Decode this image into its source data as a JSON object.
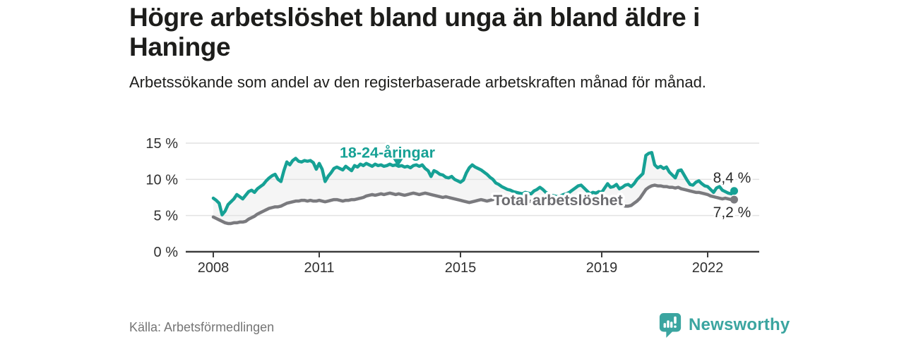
{
  "title": "Högre arbetslöshet bland unga än bland äldre i Haninge",
  "subtitle": "Arbetssökande som andel av den registerbaserade arbetskraften månad för månad.",
  "source": "Källa: Arbetsförmedlingen",
  "branding": {
    "logo_text": "Newsworthy",
    "logo_icon": "bar-chart-speech-bubble-icon",
    "brand_color": "#3ba5a0"
  },
  "colors": {
    "youth_line": "#16a195",
    "total_line": "#7a7a7e",
    "total_label": "#6c6c70",
    "between_fill": "#f5f5f5",
    "gridline": "#e2e2e2",
    "axis": "#3d3d3d",
    "tick_text": "#303030",
    "value_text": "#2b2b2b"
  },
  "chart_data": {
    "type": "line",
    "title": "Högre arbetslöshet bland unga än bland äldre i Haninge",
    "subtitle": "Arbetssökande som andel av den registerbaserade arbetskraften månad för månad.",
    "x_start_year": 2008,
    "x_frequency": "monthly",
    "x_tick_years": [
      2008,
      2011,
      2015,
      2019,
      2022
    ],
    "x_tick_labels": [
      "2008",
      "2011",
      "2015",
      "2019",
      "2022"
    ],
    "y_ticks": [
      0,
      5,
      10,
      15
    ],
    "y_tick_labels": [
      "0 %",
      "5 %",
      "10 %",
      "15 %"
    ],
    "ylim": [
      0,
      15
    ],
    "grid": true,
    "unit": "%",
    "legend_position": "inline-labels",
    "annotations": {
      "youth_label": {
        "text": "18-24-åringar",
        "x_year": 2012.93,
        "baseline_value": 13.0,
        "arrow": "down",
        "arrow_x_year": 2013.23,
        "arrow_tip_value": 11.75
      },
      "total_label": {
        "text": "Total arbetslöshet",
        "x_year": 2017.76,
        "baseline_value": 6.45
      }
    },
    "series": [
      {
        "name": "18-24-åringar",
        "end_label": "8,4 %",
        "end_value": 8.4,
        "values": [
          7.4,
          7.1,
          6.7,
          5.1,
          5.6,
          6.5,
          6.9,
          7.3,
          7.9,
          7.6,
          7.3,
          7.8,
          8.3,
          8.5,
          8.2,
          8.7,
          9.0,
          9.3,
          9.8,
          10.2,
          10.5,
          10.7,
          10.0,
          9.7,
          11.2,
          12.4,
          12.0,
          12.6,
          12.9,
          12.5,
          12.4,
          12.6,
          12.5,
          12.6,
          12.3,
          11.4,
          12.2,
          11.4,
          9.7,
          10.4,
          10.9,
          11.5,
          11.7,
          11.5,
          11.3,
          11.8,
          11.5,
          11.2,
          11.9,
          11.7,
          12.1,
          11.9,
          12.2,
          12.0,
          11.8,
          12.1,
          11.9,
          12.0,
          11.8,
          11.9,
          12.1,
          11.9,
          12.0,
          11.8,
          11.9,
          11.7,
          11.8,
          11.6,
          11.9,
          12.0,
          11.8,
          12.0,
          11.5,
          11.2,
          10.4,
          11.2,
          11.0,
          10.7,
          10.6,
          10.3,
          10.2,
          10.4,
          10.0,
          9.8,
          9.6,
          9.9,
          10.9,
          11.6,
          12.0,
          11.7,
          11.5,
          11.3,
          11.0,
          10.7,
          10.3,
          10.0,
          9.5,
          9.3,
          9.0,
          8.8,
          8.6,
          8.5,
          8.3,
          8.2,
          8.1,
          8.0,
          8.2,
          8.1,
          8.0,
          8.4,
          8.6,
          8.9,
          8.6,
          8.2,
          8.0,
          7.8,
          7.7,
          7.6,
          7.7,
          7.9,
          8.0,
          8.2,
          8.5,
          8.8,
          9.1,
          9.2,
          8.8,
          8.4,
          8.0,
          8.2,
          8.1,
          8.3,
          8.2,
          8.8,
          9.4,
          8.9,
          9.0,
          9.3,
          8.7,
          8.9,
          9.2,
          9.3,
          9.0,
          9.4,
          10.0,
          10.4,
          10.8,
          13.3,
          13.6,
          13.7,
          12.0,
          11.6,
          11.8,
          11.5,
          11.7,
          11.0,
          10.6,
          10.2,
          11.2,
          11.3,
          10.6,
          9.9,
          9.3,
          9.2,
          9.6,
          9.8,
          9.4,
          9.1,
          9.0,
          8.6,
          8.2,
          8.8,
          9.0,
          8.5,
          8.3,
          8.1,
          8.0,
          8.4
        ]
      },
      {
        "name": "Total arbetslöshet",
        "end_label": "7,2 %",
        "end_value": 7.2,
        "values": [
          4.8,
          4.6,
          4.4,
          4.2,
          4.0,
          3.9,
          3.9,
          4.0,
          4.0,
          4.1,
          4.1,
          4.2,
          4.5,
          4.7,
          4.9,
          5.2,
          5.4,
          5.6,
          5.8,
          6.0,
          6.1,
          6.2,
          6.2,
          6.3,
          6.5,
          6.7,
          6.8,
          6.9,
          7.0,
          7.0,
          7.1,
          7.1,
          7.0,
          7.1,
          7.0,
          7.0,
          7.1,
          7.0,
          6.9,
          7.0,
          7.1,
          7.2,
          7.2,
          7.1,
          7.0,
          7.1,
          7.1,
          7.2,
          7.2,
          7.3,
          7.4,
          7.5,
          7.7,
          7.8,
          7.9,
          7.8,
          7.9,
          8.0,
          7.9,
          8.0,
          8.1,
          8.0,
          7.9,
          8.0,
          7.9,
          7.8,
          7.9,
          8.0,
          8.1,
          8.0,
          7.9,
          8.0,
          8.1,
          8.0,
          7.9,
          7.8,
          7.7,
          7.6,
          7.5,
          7.6,
          7.5,
          7.4,
          7.3,
          7.2,
          7.1,
          7.0,
          6.9,
          6.8,
          6.9,
          7.0,
          7.1,
          7.2,
          7.1,
          7.0,
          7.1,
          7.2,
          7.3,
          7.2,
          7.1,
          7.2,
          7.1,
          7.0,
          7.0,
          6.9,
          7.0,
          7.1,
          7.0,
          6.9,
          7.0,
          7.1,
          7.0,
          6.9,
          6.8,
          6.9,
          6.8,
          6.7,
          6.8,
          6.9,
          6.8,
          6.9,
          6.9,
          6.8,
          6.8,
          6.7,
          6.7,
          6.6,
          6.6,
          6.7,
          6.7,
          6.8,
          6.9,
          7.0,
          7.0,
          6.9,
          6.8,
          6.7,
          6.6,
          6.5,
          6.4,
          6.4,
          6.3,
          6.3,
          6.4,
          6.7,
          7.0,
          7.4,
          8.0,
          8.6,
          8.9,
          9.1,
          9.2,
          9.1,
          9.1,
          9.0,
          9.0,
          8.9,
          8.9,
          8.8,
          8.9,
          8.7,
          8.6,
          8.5,
          8.4,
          8.3,
          8.2,
          8.2,
          8.1,
          8.0,
          7.9,
          7.7,
          7.6,
          7.5,
          7.4,
          7.3,
          7.4,
          7.3,
          7.2,
          7.2
        ]
      }
    ]
  }
}
